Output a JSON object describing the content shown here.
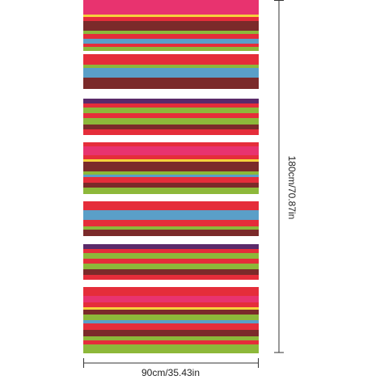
{
  "dimensions": {
    "width_label": "90cm/35.43in",
    "height_label": "180cm/70.87in"
  }
}
